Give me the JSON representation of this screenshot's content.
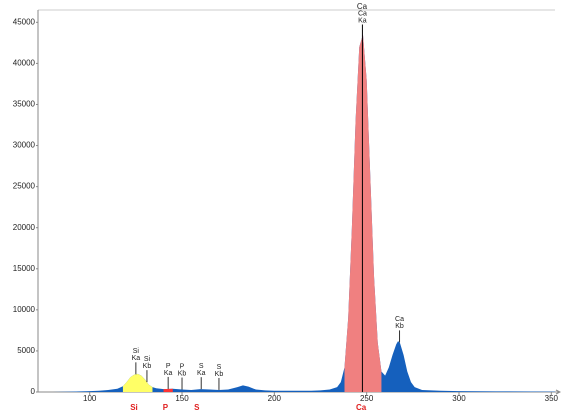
{
  "chart_data": {
    "type": "area",
    "title": "Ca",
    "x": [
      80,
      90,
      100,
      105,
      110,
      115,
      118,
      120,
      122,
      124,
      126,
      128,
      130,
      132,
      134,
      136,
      140,
      145,
      150,
      155,
      160,
      165,
      170,
      175,
      180,
      183,
      186,
      190,
      195,
      200,
      210,
      220,
      225,
      230,
      234,
      236,
      238,
      240,
      242,
      244,
      246,
      248,
      250,
      252,
      254,
      256,
      258,
      260,
      262,
      264,
      266,
      267,
      268,
      270,
      272,
      274,
      276,
      280,
      290,
      300,
      320,
      340,
      352
    ],
    "values": [
      0,
      40,
      100,
      150,
      250,
      400,
      700,
      1200,
      1800,
      2100,
      2200,
      2000,
      1500,
      900,
      600,
      450,
      350,
      400,
      300,
      250,
      350,
      300,
      250,
      300,
      600,
      800,
      650,
      300,
      200,
      150,
      150,
      150,
      200,
      300,
      600,
      1200,
      3000,
      9000,
      20000,
      33000,
      42000,
      43500,
      38000,
      26000,
      14000,
      6000,
      2500,
      2000,
      3000,
      4500,
      5800,
      6200,
      6000,
      4500,
      2500,
      1200,
      600,
      250,
      150,
      100,
      80,
      60,
      50
    ],
    "color": "#1560bd",
    "elements": [
      {
        "symbol": "Si",
        "x": 124,
        "range": [
          118,
          134
        ],
        "color": "#ffff66"
      },
      {
        "symbol": "P",
        "x": 141,
        "range": [
          138,
          146
        ],
        "color": "#ff3333"
      },
      {
        "symbol": "S",
        "x": 158
      },
      {
        "symbol": "Ca",
        "x": 247,
        "range": [
          238,
          258
        ],
        "color": "#f08080"
      }
    ],
    "lines": [
      {
        "element": "Si",
        "line": "Ka",
        "x": 125
      },
      {
        "element": "Si",
        "line": "Kb",
        "x": 131
      },
      {
        "element": "P",
        "line": "Ka",
        "x": 142.5
      },
      {
        "element": "P",
        "line": "Kb",
        "x": 150
      },
      {
        "element": "S",
        "line": "Ka",
        "x": 160.4
      },
      {
        "element": "S",
        "line": "Kb",
        "x": 170
      },
      {
        "element": "Ca",
        "line": "Ka",
        "x": 247.7,
        "full": true
      },
      {
        "element": "Ca",
        "line": "Kb",
        "x": 267.8
      }
    ],
    "xlim": [
      72,
      352
    ],
    "xticks": [
      100,
      150,
      200,
      250,
      300,
      350
    ],
    "ylim": [
      0,
      46500
    ],
    "yticks": [
      0,
      5000,
      10000,
      15000,
      20000,
      25000,
      30000,
      35000,
      40000,
      45000
    ],
    "grid": false
  }
}
